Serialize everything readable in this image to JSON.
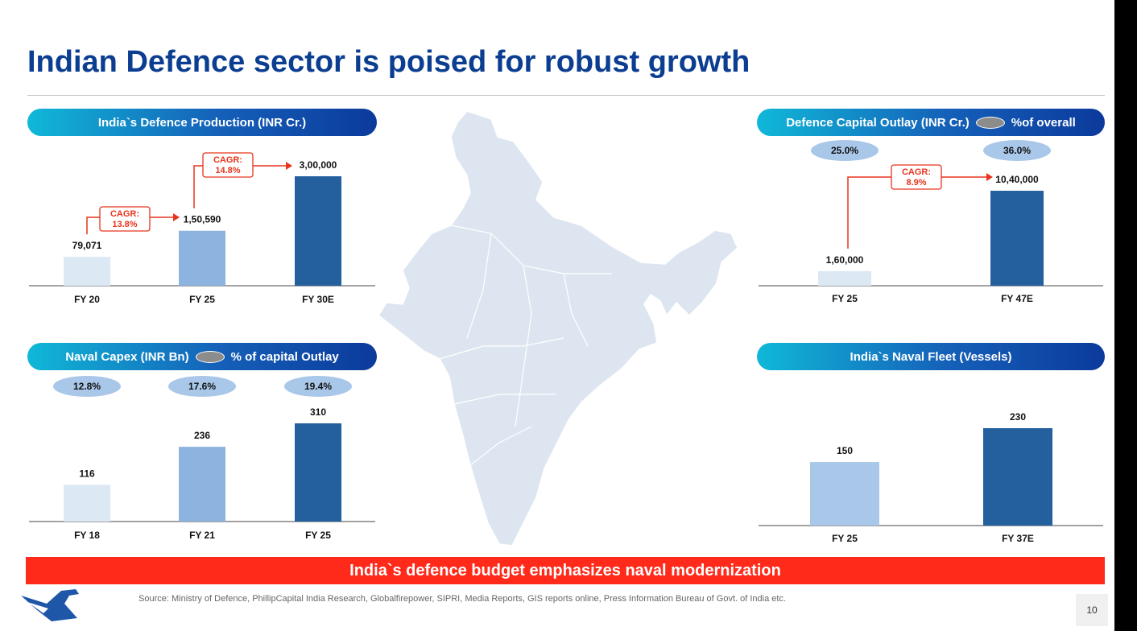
{
  "title": "Indian Defence sector is poised for robust growth",
  "banner": "India`s defence budget emphasizes naval modernization",
  "source": "Source: Ministry of Defence, PhillipCapital India Research, Globalfirepower, SIPRI, Media Reports, GIS reports online, Press Information Bureau of Govt. of India etc.",
  "page_number": "10",
  "colors": {
    "title": "#0b3d91",
    "banner": "#ff2a1a",
    "cagr": "#e8341c",
    "light": "#dce9f5",
    "mid": "#8db3df",
    "dark": "#245f9e",
    "pct_oval": "#a9c7e8",
    "map": "#dde6f0"
  },
  "panels": {
    "production": {
      "header": "India`s Defence Production (INR Cr.)"
    },
    "capital": {
      "header": "Defence Capital Outlay (INR Cr.)",
      "legend": "%of overall"
    },
    "naval_capex": {
      "header": "Naval Capex (INR Bn)",
      "legend": "% of capital Outlay"
    },
    "fleet": {
      "header": "India`s Naval Fleet (Vessels)"
    }
  },
  "chart_data": [
    {
      "id": "production",
      "type": "bar",
      "title": "India`s Defence Production (INR Cr.)",
      "categories": [
        "FY 20",
        "FY 25",
        "FY 30E"
      ],
      "values": [
        79071,
        150590,
        300000
      ],
      "labels": [
        "79,071",
        "1,50,590",
        "3,00,000"
      ],
      "ylim": [
        0,
        300000
      ],
      "annotations": [
        {
          "text_line1": "CAGR:",
          "text_line2": "13.8%",
          "from": 0,
          "to": 1
        },
        {
          "text_line1": "CAGR:",
          "text_line2": "14.8%",
          "from": 1,
          "to": 2
        }
      ]
    },
    {
      "id": "capital",
      "type": "bar",
      "title": "Defence Capital Outlay (INR Cr.)",
      "categories": [
        "FY 25",
        "FY 47E"
      ],
      "values": [
        160000,
        1040000
      ],
      "labels": [
        "1,60,000",
        "10,40,000"
      ],
      "percent_labels": [
        "25.0%",
        "36.0%"
      ],
      "ylim": [
        0,
        1040000
      ],
      "annotations": [
        {
          "text_line1": "CAGR:",
          "text_line2": "8.9%",
          "from": 0,
          "to": 1
        }
      ]
    },
    {
      "id": "naval_capex",
      "type": "bar",
      "title": "Naval Capex (INR Bn)",
      "categories": [
        "FY 18",
        "FY 21",
        "FY 25"
      ],
      "values": [
        116,
        236,
        310
      ],
      "labels": [
        "116",
        "236",
        "310"
      ],
      "percent_labels": [
        "12.8%",
        "17.6%",
        "19.4%"
      ],
      "ylim": [
        0,
        310
      ]
    },
    {
      "id": "fleet",
      "type": "bar",
      "title": "India`s Naval Fleet (Vessels)",
      "categories": [
        "FY 25",
        "FY 37E"
      ],
      "values": [
        150,
        230
      ],
      "labels": [
        "150",
        "230"
      ],
      "ylim": [
        0,
        230
      ]
    }
  ]
}
